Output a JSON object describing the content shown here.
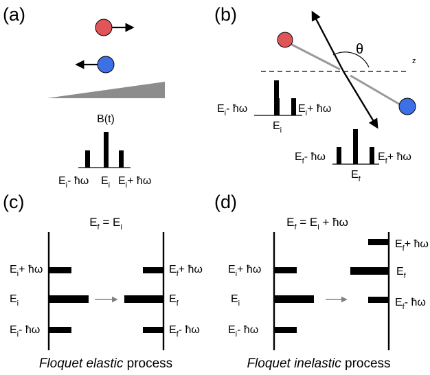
{
  "panels": {
    "a": "(a)",
    "b": "(b)",
    "c": "(c)",
    "d": "(d)"
  },
  "panel_a": {
    "field_label": "B(t)",
    "left": {
      "base": "E",
      "sub": "i",
      "suffix": "- ħω"
    },
    "center": {
      "base": "E",
      "sub": "i"
    },
    "right": {
      "base": "E",
      "sub": "i",
      "suffix": "+ ħω"
    },
    "ball_colors": {
      "red": "#e05558",
      "blue": "#3d6fe6"
    },
    "ramp_color": "#8c8c8c"
  },
  "panel_b": {
    "angle": "θ",
    "axis": "z",
    "initial": {
      "left": {
        "base": "E",
        "sub": "i",
        "suffix": "- ħω"
      },
      "right": {
        "base": "E",
        "sub": "i",
        "suffix": "+ ħω"
      },
      "center": {
        "base": "E",
        "sub": "i"
      }
    },
    "final": {
      "left": {
        "base": "E",
        "sub": "f",
        "suffix": "- ħω"
      },
      "right": {
        "base": "E",
        "sub": "f",
        "suffix": "+ ħω"
      },
      "center": {
        "base": "E",
        "sub": "f"
      }
    }
  },
  "panel_c": {
    "equation": {
      "a": "E",
      "a_sub": "f",
      "mid": " = E",
      "b_sub": "i",
      "tail": ""
    },
    "left": [
      {
        "base": "E",
        "sub": "i",
        "suffix": "+ ħω"
      },
      {
        "base": "E",
        "sub": "i",
        "suffix": ""
      },
      {
        "base": "E",
        "sub": "i",
        "suffix": "- ħω"
      }
    ],
    "right": [
      {
        "base": "E",
        "sub": "f",
        "suffix": "+ ħω"
      },
      {
        "base": "E",
        "sub": "f",
        "suffix": ""
      },
      {
        "base": "E",
        "sub": "f",
        "suffix": "- ħω"
      }
    ],
    "caption": {
      "italic": "Floquet elastic",
      "plain": " process"
    }
  },
  "panel_d": {
    "equation": {
      "a": "E",
      "a_sub": "f",
      "mid": " = E",
      "b_sub": "i",
      "tail": " + ħω"
    },
    "left": [
      {
        "base": "E",
        "sub": "i",
        "suffix": "+ ħω"
      },
      {
        "base": "E",
        "sub": "i",
        "suffix": ""
      },
      {
        "base": "E",
        "sub": "i",
        "suffix": "- ħω"
      }
    ],
    "right": [
      {
        "base": "E",
        "sub": "f",
        "suffix": "+ ħω"
      },
      {
        "base": "E",
        "sub": "f",
        "suffix": ""
      },
      {
        "base": "E",
        "sub": "f",
        "suffix": "- ħω"
      }
    ],
    "caption": {
      "italic": "Floquet inelastic",
      "plain": " process"
    }
  }
}
